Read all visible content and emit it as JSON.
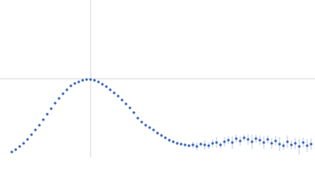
{
  "chart_data": {
    "type": "scatter",
    "color": "#3a66b8",
    "grid": true,
    "xlim": [
      0,
      400
    ],
    "ylim": [
      0,
      200
    ],
    "xticks": [
      115
    ],
    "yticks": [
      100
    ],
    "series": [
      {
        "x": [
          15,
          20,
          25,
          30,
          35,
          40,
          45,
          50,
          55,
          60,
          65,
          70,
          75,
          80,
          85,
          90,
          95,
          100,
          105,
          110,
          115,
          120,
          125,
          130,
          135,
          140,
          145,
          150,
          155,
          160,
          165,
          170,
          175,
          180,
          185,
          190,
          195,
          200,
          205,
          210,
          215,
          220,
          225,
          230,
          235,
          240,
          245,
          250,
          255,
          260,
          265,
          270,
          275,
          280,
          285,
          290,
          295,
          300,
          305,
          310,
          315,
          320,
          325,
          330,
          335,
          340,
          345,
          350,
          355,
          360,
          365,
          370,
          375,
          380,
          385,
          390,
          395
        ],
        "values": [
          7,
          10,
          14,
          18,
          23,
          29,
          35,
          41,
          48,
          55,
          62,
          69,
          75,
          81,
          86,
          91,
          94,
          96,
          98,
          99,
          99,
          98,
          96,
          93,
          90,
          86,
          82,
          78,
          73,
          68,
          63,
          57,
          50,
          45,
          41,
          38,
          35,
          31,
          28,
          25,
          22,
          20,
          18,
          17,
          16,
          15,
          16,
          14,
          17,
          16,
          15,
          18,
          19,
          16,
          20,
          22,
          19,
          24,
          21,
          25,
          23,
          20,
          24,
          22,
          19,
          23,
          18,
          21,
          17,
          15,
          20,
          16,
          18,
          14,
          19,
          15,
          17
        ],
        "errors": [
          0.5,
          0.5,
          0.5,
          0.5,
          0.5,
          0.5,
          0.5,
          0.5,
          0.5,
          0.5,
          0.5,
          0.5,
          0.5,
          0.5,
          0.5,
          0.5,
          0.5,
          0.5,
          0.5,
          0.5,
          0.5,
          0.5,
          0.5,
          0.5,
          0.5,
          0.5,
          0.5,
          0.5,
          0.5,
          0.5,
          0.5,
          0.5,
          0.5,
          0.5,
          0.5,
          0.5,
          0.5,
          2,
          2,
          2,
          2,
          2,
          2,
          2,
          2,
          2,
          4,
          5,
          3,
          6,
          4,
          5,
          7,
          4,
          6,
          5,
          8,
          5,
          6,
          4,
          7,
          9,
          5,
          6,
          8,
          5,
          7,
          6,
          9,
          5,
          8,
          6,
          7,
          10,
          6,
          8,
          7
        ]
      }
    ]
  }
}
